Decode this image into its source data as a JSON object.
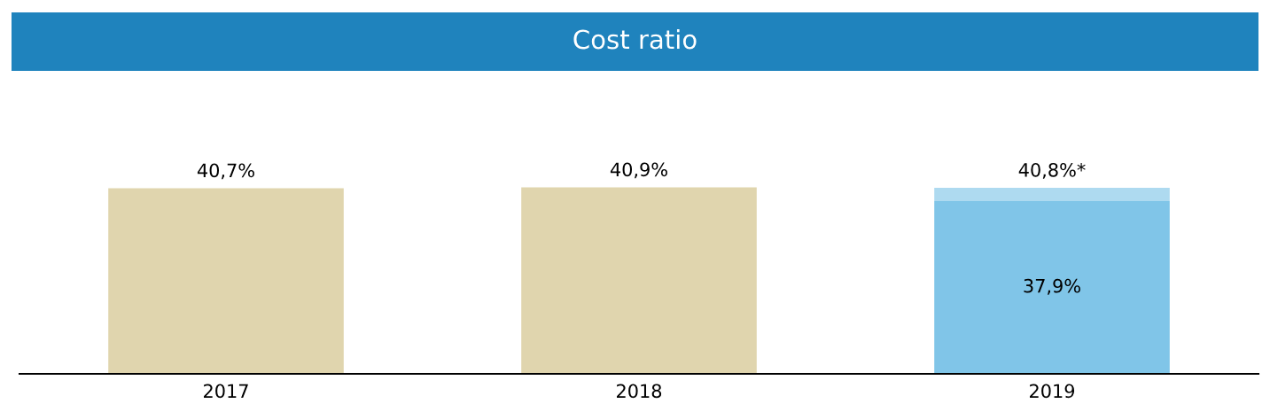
{
  "chart_data": {
    "type": "bar",
    "title": "Cost ratio",
    "categories": [
      "2017",
      "2018",
      "2019"
    ],
    "stacked": true,
    "series": [
      {
        "colors": [
          "#e0d5ae",
          "#e0d5ae",
          "#80c5e8"
        ],
        "values": [
          40.7,
          40.9,
          37.9
        ],
        "value_labels": [
          null,
          null,
          "37,9%"
        ]
      },
      {
        "color": "#aedaf0",
        "values": [
          null,
          null,
          2.9
        ]
      }
    ],
    "totals": [
      "40,7%",
      "40,9%",
      "40,8%*"
    ],
    "tick_labels": "x"
  }
}
